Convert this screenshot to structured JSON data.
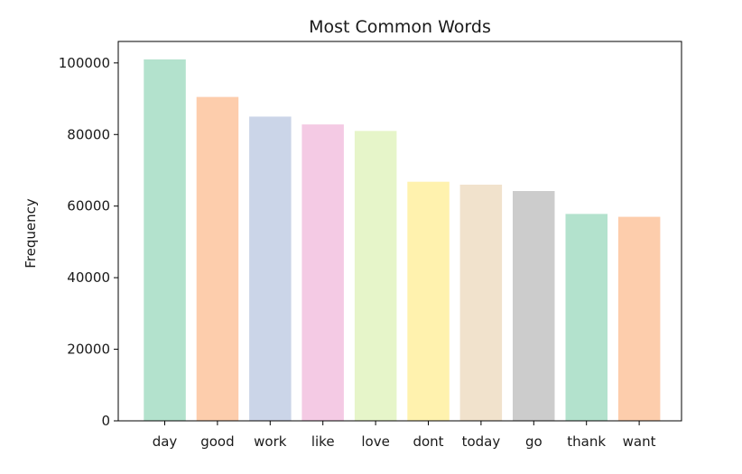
{
  "chart_data": {
    "type": "bar",
    "title": "Most Common Words",
    "xlabel": "",
    "ylabel": "Frequency",
    "categories": [
      "day",
      "good",
      "work",
      "like",
      "love",
      "dont",
      "today",
      "go",
      "thank",
      "want"
    ],
    "values": [
      101000,
      90500,
      85000,
      82800,
      81000,
      66800,
      66000,
      64200,
      57800,
      57000
    ],
    "ylim": [
      0,
      106000
    ],
    "yticks": [
      0,
      20000,
      40000,
      60000,
      80000,
      100000
    ],
    "ytick_labels": [
      "0",
      "20000",
      "40000",
      "60000",
      "80000",
      "100000"
    ],
    "grid": false,
    "legend": "none",
    "colors": [
      "#b3e2cd",
      "#fdcdac",
      "#cbd5e8",
      "#f4cae4",
      "#e6f5c9",
      "#fff2ae",
      "#f1e2cc",
      "#cccccc",
      "#b3e2cd",
      "#fdcdac"
    ]
  }
}
